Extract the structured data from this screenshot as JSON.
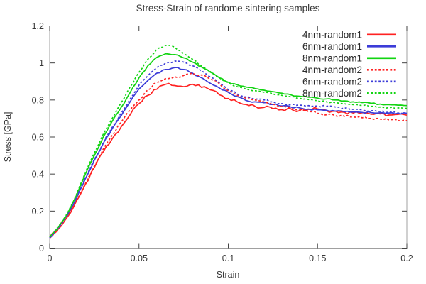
{
  "figure": {
    "background": "#ffffff",
    "border_color": "#a0a0a0",
    "tick_color": "#444444",
    "text_color": "#383838"
  },
  "chart_data": {
    "type": "line",
    "title": "Stress-Strain of randome sintering samples",
    "xlabel": "Strain",
    "ylabel": "Stress [GPa]",
    "xlim": [
      0,
      0.2
    ],
    "ylim": [
      0,
      1.2
    ],
    "x_ticks": [
      0,
      0.05,
      0.1,
      0.15,
      0.2
    ],
    "x_tick_labels": [
      "0",
      "0.05",
      "0.1",
      "0.15",
      "0.2"
    ],
    "y_ticks": [
      0,
      0.2,
      0.4,
      0.6,
      0.8,
      1,
      1.2
    ],
    "y_tick_labels": [
      "0",
      "0.2",
      "0.4",
      "0.6",
      "0.8",
      "1",
      "1.2"
    ],
    "grid": false,
    "legend_position": "top-right-inside",
    "x": [
      0,
      0.005,
      0.01,
      0.015,
      0.02,
      0.025,
      0.03,
      0.035,
      0.04,
      0.045,
      0.05,
      0.055,
      0.06,
      0.065,
      0.07,
      0.075,
      0.08,
      0.085,
      0.09,
      0.095,
      0.1,
      0.105,
      0.11,
      0.115,
      0.12,
      0.125,
      0.13,
      0.135,
      0.14,
      0.145,
      0.15,
      0.155,
      0.16,
      0.165,
      0.17,
      0.175,
      0.18,
      0.185,
      0.19,
      0.195,
      0.2
    ],
    "series": [
      {
        "name": "4nm-random1",
        "color": "#ff2222",
        "style": "solid",
        "noise": 0.009,
        "values": [
          0.06,
          0.105,
          0.17,
          0.255,
          0.345,
          0.435,
          0.52,
          0.59,
          0.655,
          0.72,
          0.78,
          0.825,
          0.858,
          0.885,
          0.878,
          0.872,
          0.885,
          0.868,
          0.855,
          0.828,
          0.808,
          0.79,
          0.776,
          0.766,
          0.76,
          0.753,
          0.748,
          0.753,
          0.743,
          0.75,
          0.752,
          0.743,
          0.74,
          0.734,
          0.729,
          0.731,
          0.723,
          0.725,
          0.719,
          0.722,
          0.718
        ]
      },
      {
        "name": "6nm-random1",
        "color": "#3c3cd8",
        "style": "solid",
        "noise": 0.005,
        "values": [
          0.055,
          0.11,
          0.18,
          0.27,
          0.375,
          0.475,
          0.565,
          0.645,
          0.715,
          0.79,
          0.86,
          0.905,
          0.945,
          0.965,
          0.975,
          0.965,
          0.945,
          0.92,
          0.89,
          0.865,
          0.841,
          0.818,
          0.797,
          0.79,
          0.785,
          0.776,
          0.768,
          0.762,
          0.757,
          0.751,
          0.747,
          0.745,
          0.74,
          0.737,
          0.735,
          0.733,
          0.732,
          0.731,
          0.73,
          0.729,
          0.728
        ]
      },
      {
        "name": "8nm-random1",
        "color": "#12d412",
        "style": "solid",
        "noise": 0.004,
        "values": [
          0.06,
          0.115,
          0.185,
          0.285,
          0.4,
          0.5,
          0.6,
          0.685,
          0.76,
          0.84,
          0.92,
          0.985,
          1.03,
          1.05,
          1.045,
          1.028,
          1.005,
          0.978,
          0.95,
          0.92,
          0.896,
          0.882,
          0.87,
          0.862,
          0.853,
          0.845,
          0.837,
          0.828,
          0.82,
          0.815,
          0.81,
          0.806,
          0.8,
          0.795,
          0.79,
          0.786,
          0.782,
          0.778,
          0.775,
          0.772,
          0.77
        ]
      },
      {
        "name": "4nm-random2",
        "color": "#ff2222",
        "style": "dashed",
        "noise": 0.007,
        "values": [
          0.055,
          0.11,
          0.175,
          0.26,
          0.35,
          0.445,
          0.535,
          0.61,
          0.68,
          0.745,
          0.8,
          0.855,
          0.895,
          0.915,
          0.925,
          0.932,
          0.945,
          0.935,
          0.912,
          0.888,
          0.85,
          0.825,
          0.81,
          0.8,
          0.79,
          0.776,
          0.765,
          0.755,
          0.748,
          0.737,
          0.728,
          0.72,
          0.715,
          0.712,
          0.708,
          0.704,
          0.7,
          0.697,
          0.693,
          0.69,
          0.688
        ]
      },
      {
        "name": "6nm-random2",
        "color": "#3c3cd8",
        "style": "dashed",
        "noise": 0.005,
        "values": [
          0.055,
          0.112,
          0.182,
          0.275,
          0.38,
          0.48,
          0.57,
          0.652,
          0.73,
          0.805,
          0.88,
          0.93,
          0.975,
          1.0,
          1.01,
          1.005,
          0.985,
          0.955,
          0.925,
          0.893,
          0.856,
          0.833,
          0.816,
          0.806,
          0.8,
          0.79,
          0.781,
          0.775,
          0.772,
          0.77,
          0.768,
          0.766,
          0.762,
          0.756,
          0.75,
          0.746,
          0.742,
          0.738,
          0.734,
          0.73,
          0.727
        ]
      },
      {
        "name": "8nm-random2",
        "color": "#12d412",
        "style": "dashed",
        "noise": 0.004,
        "values": [
          0.06,
          0.118,
          0.19,
          0.29,
          0.41,
          0.515,
          0.615,
          0.7,
          0.785,
          0.87,
          0.95,
          1.02,
          1.075,
          1.095,
          1.085,
          1.05,
          1.02,
          0.985,
          0.953,
          0.92,
          0.893,
          0.872,
          0.858,
          0.85,
          0.842,
          0.833,
          0.825,
          0.817,
          0.81,
          0.802,
          0.796,
          0.79,
          0.785,
          0.78,
          0.775,
          0.77,
          0.766,
          0.762,
          0.759,
          0.757,
          0.755
        ]
      }
    ]
  }
}
